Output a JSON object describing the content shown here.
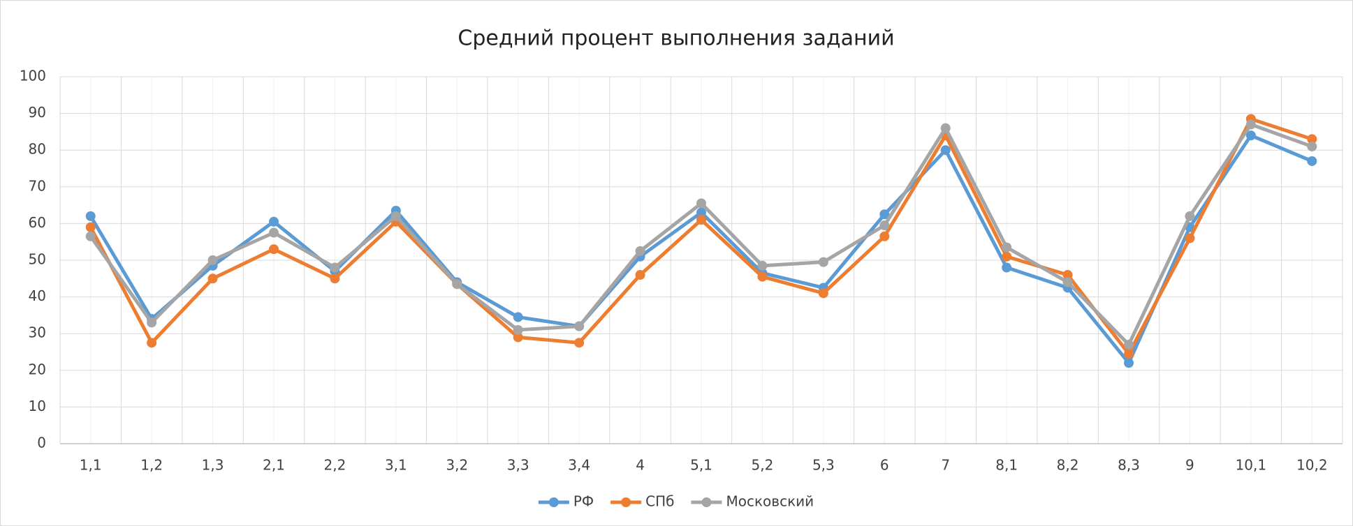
{
  "chart_data": {
    "type": "line",
    "title": "Средний процент выполнения заданий",
    "categories": [
      "1,1",
      "1,2",
      "1,3",
      "2,1",
      "2,2",
      "3,1",
      "3,2",
      "3,3",
      "3,4",
      "4",
      "5,1",
      "5,2",
      "5,3",
      "6",
      "7",
      "8,1",
      "8,2",
      "8,3",
      "9",
      "10,1",
      "10,2"
    ],
    "series": [
      {
        "name": "РФ",
        "color": "#5b9bd5",
        "values": [
          62,
          34,
          48.5,
          60.5,
          47,
          63.5,
          44,
          34.5,
          32,
          51,
          63,
          46.5,
          42.5,
          62.5,
          80,
          48,
          42.5,
          22,
          59,
          84,
          77
        ]
      },
      {
        "name": "СПб",
        "color": "#ed7d31",
        "values": [
          59,
          27.5,
          45,
          53,
          45,
          60.5,
          43.5,
          29,
          27.5,
          46,
          61,
          45.5,
          41,
          56.5,
          84,
          51,
          46,
          24.5,
          56,
          88.5,
          83
        ]
      },
      {
        "name": "Московский",
        "color": "#a5a5a5",
        "values": [
          56.5,
          33,
          50,
          57.5,
          48,
          62,
          43.5,
          31,
          32,
          52.5,
          65.5,
          48.5,
          49.5,
          59.5,
          86,
          53.5,
          44,
          27,
          62,
          87,
          81
        ]
      }
    ],
    "ylim": [
      0,
      100
    ],
    "yticks": [
      0,
      10,
      20,
      30,
      40,
      50,
      60,
      70,
      80,
      90,
      100
    ],
    "grid": true,
    "legend": "bottom"
  }
}
